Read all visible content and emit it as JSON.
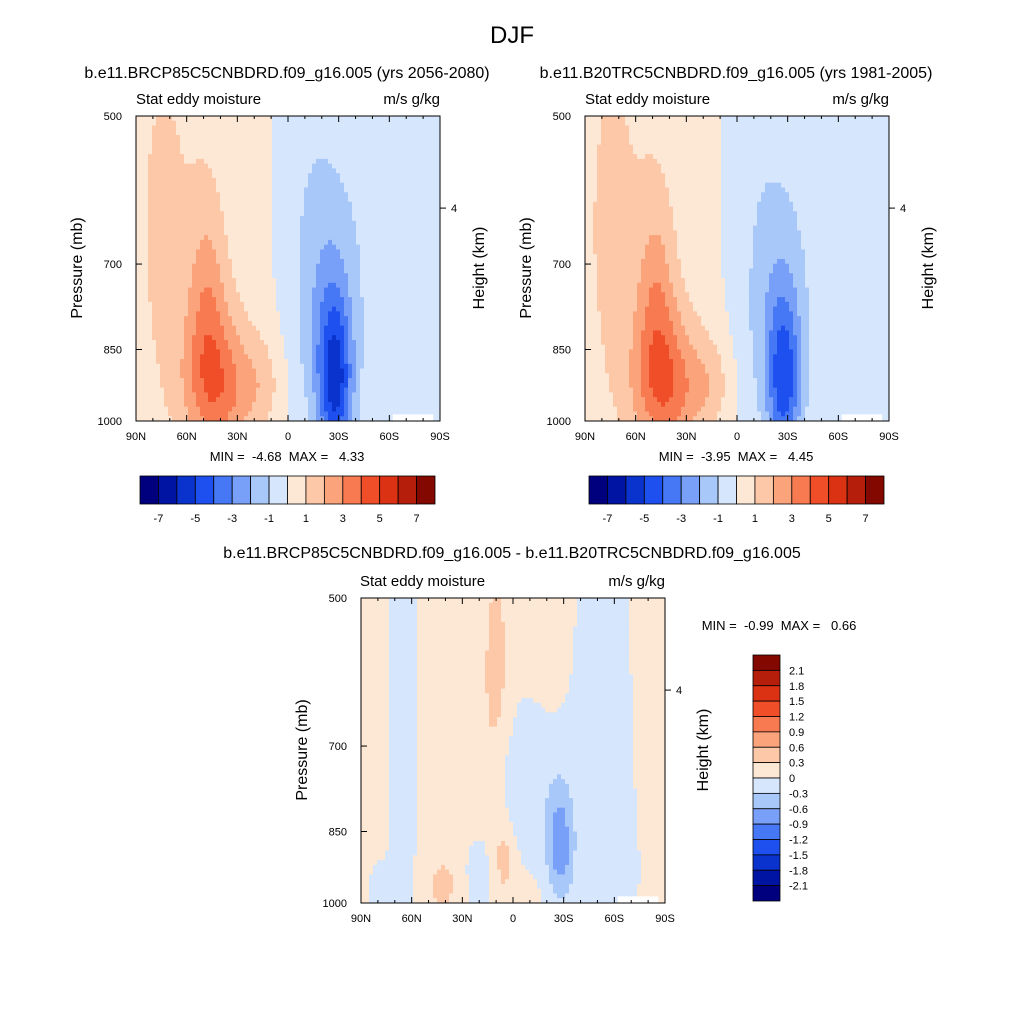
{
  "figure_title": "DJF",
  "chart_data": [
    {
      "type": "heatmap",
      "panel": "future",
      "title": "b.e11.BRCP85C5CNBDRD.f09_g16.005 (yrs 2056-2080)",
      "left_label": "Stat eddy moisture",
      "right_label": "m/s g/kg",
      "ylabel": "Pressure (mb)",
      "y2label": "Height (km)",
      "x_ticks": [
        "90N",
        "60N",
        "30N",
        "0",
        "30S",
        "60S",
        "90S"
      ],
      "y_ticks": [
        "500",
        "700",
        "850",
        "1000"
      ],
      "y2_ticks": [
        "4"
      ],
      "stats_text": "MIN =  -4.68  MAX =   4.33",
      "min": -4.68,
      "max": 4.33,
      "xlim": [
        90,
        -90
      ],
      "ylim": [
        1000,
        500
      ],
      "field": {
        "kind": "full",
        "neg_scale": 4.68,
        "pos_scale": 4.33
      },
      "colorbar": {
        "orientation": "horizontal",
        "levels": [
          -8,
          -7,
          -6,
          -5,
          -4,
          -3,
          -2,
          -1,
          0,
          1,
          2,
          3,
          4,
          5,
          6,
          7,
          8
        ],
        "tick_labels": [
          "-7",
          "-5",
          "-3",
          "-1",
          "1",
          "3",
          "5",
          "7"
        ]
      }
    },
    {
      "type": "heatmap",
      "panel": "historical",
      "title": "b.e11.B20TRC5CNBDRD.f09_g16.005 (yrs 1981-2005)",
      "left_label": "Stat eddy moisture",
      "right_label": "m/s g/kg",
      "ylabel": "Pressure (mb)",
      "y2label": "Height (km)",
      "x_ticks": [
        "90N",
        "60N",
        "30N",
        "0",
        "30S",
        "60S",
        "90S"
      ],
      "y_ticks": [
        "500",
        "700",
        "850",
        "1000"
      ],
      "y2_ticks": [
        "4"
      ],
      "stats_text": "MIN =  -3.95  MAX =   4.45",
      "min": -3.95,
      "max": 4.45,
      "xlim": [
        90,
        -90
      ],
      "ylim": [
        1000,
        500
      ],
      "field": {
        "kind": "full",
        "neg_scale": 3.95,
        "pos_scale": 4.45
      },
      "colorbar": {
        "orientation": "horizontal",
        "levels": [
          -8,
          -7,
          -6,
          -5,
          -4,
          -3,
          -2,
          -1,
          0,
          1,
          2,
          3,
          4,
          5,
          6,
          7,
          8
        ],
        "tick_labels": [
          "-7",
          "-5",
          "-3",
          "-1",
          "1",
          "3",
          "5",
          "7"
        ]
      }
    },
    {
      "type": "heatmap",
      "panel": "difference",
      "title": "b.e11.BRCP85C5CNBDRD.f09_g16.005 - b.e11.B20TRC5CNBDRD.f09_g16.005",
      "left_label": "Stat eddy moisture",
      "right_label": "m/s g/kg",
      "ylabel": "Pressure (mb)",
      "y2label": "Height (km)",
      "x_ticks": [
        "90N",
        "60N",
        "30N",
        "0",
        "30S",
        "60S",
        "90S"
      ],
      "y_ticks": [
        "500",
        "700",
        "850",
        "1000"
      ],
      "y2_ticks": [
        "4"
      ],
      "stats_text": "MIN =  -0.99  MAX =   0.66",
      "min": -0.99,
      "max": 0.66,
      "xlim": [
        90,
        -90
      ],
      "ylim": [
        1000,
        500
      ],
      "field": {
        "kind": "diff",
        "neg_scale": 0.99,
        "pos_scale": 0.66
      },
      "colorbar": {
        "orientation": "vertical",
        "levels": [
          -2.4,
          -2.1,
          -1.8,
          -1.5,
          -1.2,
          -0.9,
          -0.6,
          -0.3,
          0,
          0.3,
          0.6,
          0.9,
          1.2,
          1.5,
          1.8,
          2.1,
          2.4
        ],
        "tick_labels": [
          "2.1",
          "1.8",
          "1.5",
          "1.2",
          "0.9",
          "0.6",
          "0.3",
          "0",
          "-0.3",
          "-0.6",
          "-0.9",
          "-1.2",
          "-1.5",
          "-1.8",
          "-2.1"
        ]
      }
    }
  ],
  "palette": [
    "#00007e",
    "#0014a4",
    "#0a32cc",
    "#1e50f0",
    "#4678f5",
    "#78a0f8",
    "#a8c8fa",
    "#d6e6fc",
    "#fde8d6",
    "#fcc8a8",
    "#fba47c",
    "#f77a50",
    "#f04e28",
    "#dc3214",
    "#b41e0a",
    "#820800"
  ]
}
